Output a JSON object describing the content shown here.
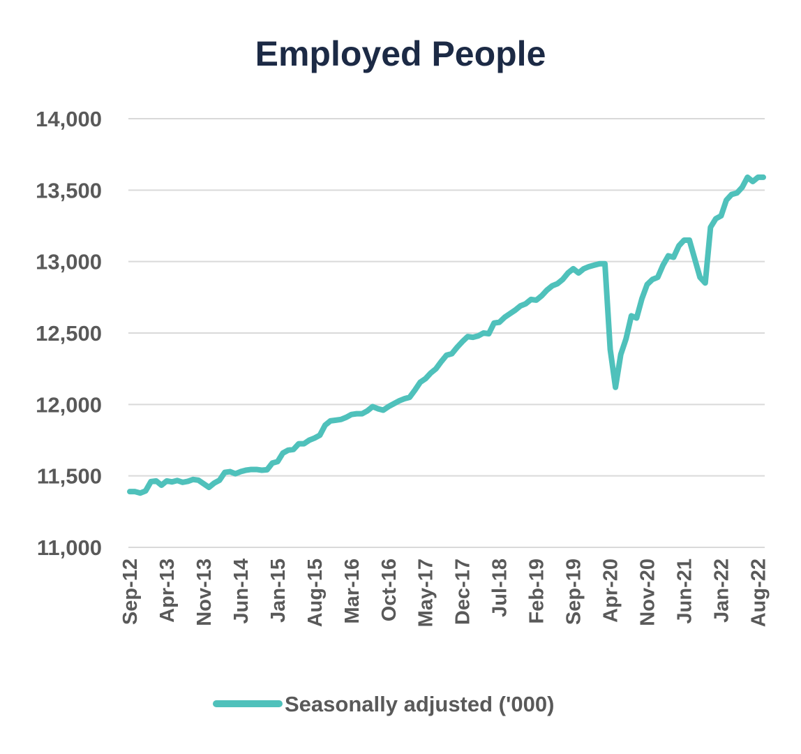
{
  "chart_data": {
    "type": "line",
    "title": "Employed People",
    "xlabel": "",
    "ylabel": "",
    "ylim": [
      11000,
      14000
    ],
    "yticks": [
      11000,
      11500,
      12000,
      12500,
      13000,
      13500,
      14000
    ],
    "ytick_labels": [
      "11,000",
      "11,500",
      "12,000",
      "12,500",
      "13,000",
      "13,500",
      "14,000"
    ],
    "xtick_labels": [
      "Sep-12",
      "Apr-13",
      "Nov-13",
      "Jun-14",
      "Jan-15",
      "Aug-15",
      "Mar-16",
      "Oct-16",
      "May-17",
      "Dec-17",
      "Jul-18",
      "Feb-19",
      "Sep-19",
      "Apr-20",
      "Nov-20",
      "Jun-21",
      "Jan-22",
      "Aug-22"
    ],
    "grid": true,
    "legend_position": "bottom",
    "series": [
      {
        "name": "Seasonally adjusted ('000)",
        "color": "#4fc1bb",
        "x_start": "Sep-12",
        "x_end": "Aug-22",
        "frequency": "monthly",
        "values": [
          11390,
          11390,
          11380,
          11395,
          11460,
          11465,
          11435,
          11465,
          11458,
          11468,
          11455,
          11462,
          11475,
          11470,
          11445,
          11420,
          11450,
          11470,
          11525,
          11530,
          11515,
          11530,
          11540,
          11545,
          11545,
          11540,
          11543,
          11590,
          11600,
          11660,
          11680,
          11685,
          11725,
          11725,
          11750,
          11765,
          11785,
          11855,
          11885,
          11890,
          11895,
          11910,
          11930,
          11935,
          11935,
          11955,
          11985,
          11970,
          11960,
          11985,
          12005,
          12025,
          12040,
          12050,
          12100,
          12155,
          12180,
          12220,
          12250,
          12300,
          12345,
          12355,
          12400,
          12440,
          12475,
          12470,
          12480,
          12500,
          12495,
          12570,
          12575,
          12610,
          12635,
          12660,
          12690,
          12705,
          12735,
          12730,
          12760,
          12800,
          12830,
          12845,
          12875,
          12920,
          12950,
          12920,
          12950,
          12965,
          12975,
          12985,
          12985,
          12385,
          12120,
          12350,
          12460,
          12620,
          12605,
          12740,
          12840,
          12875,
          12890,
          12975,
          13040,
          13030,
          13110,
          13150,
          13150,
          13020,
          12890,
          12850,
          13240,
          13300,
          13320,
          13430,
          13470,
          13480,
          13520,
          13590,
          13560,
          13590,
          13590
        ]
      }
    ]
  }
}
